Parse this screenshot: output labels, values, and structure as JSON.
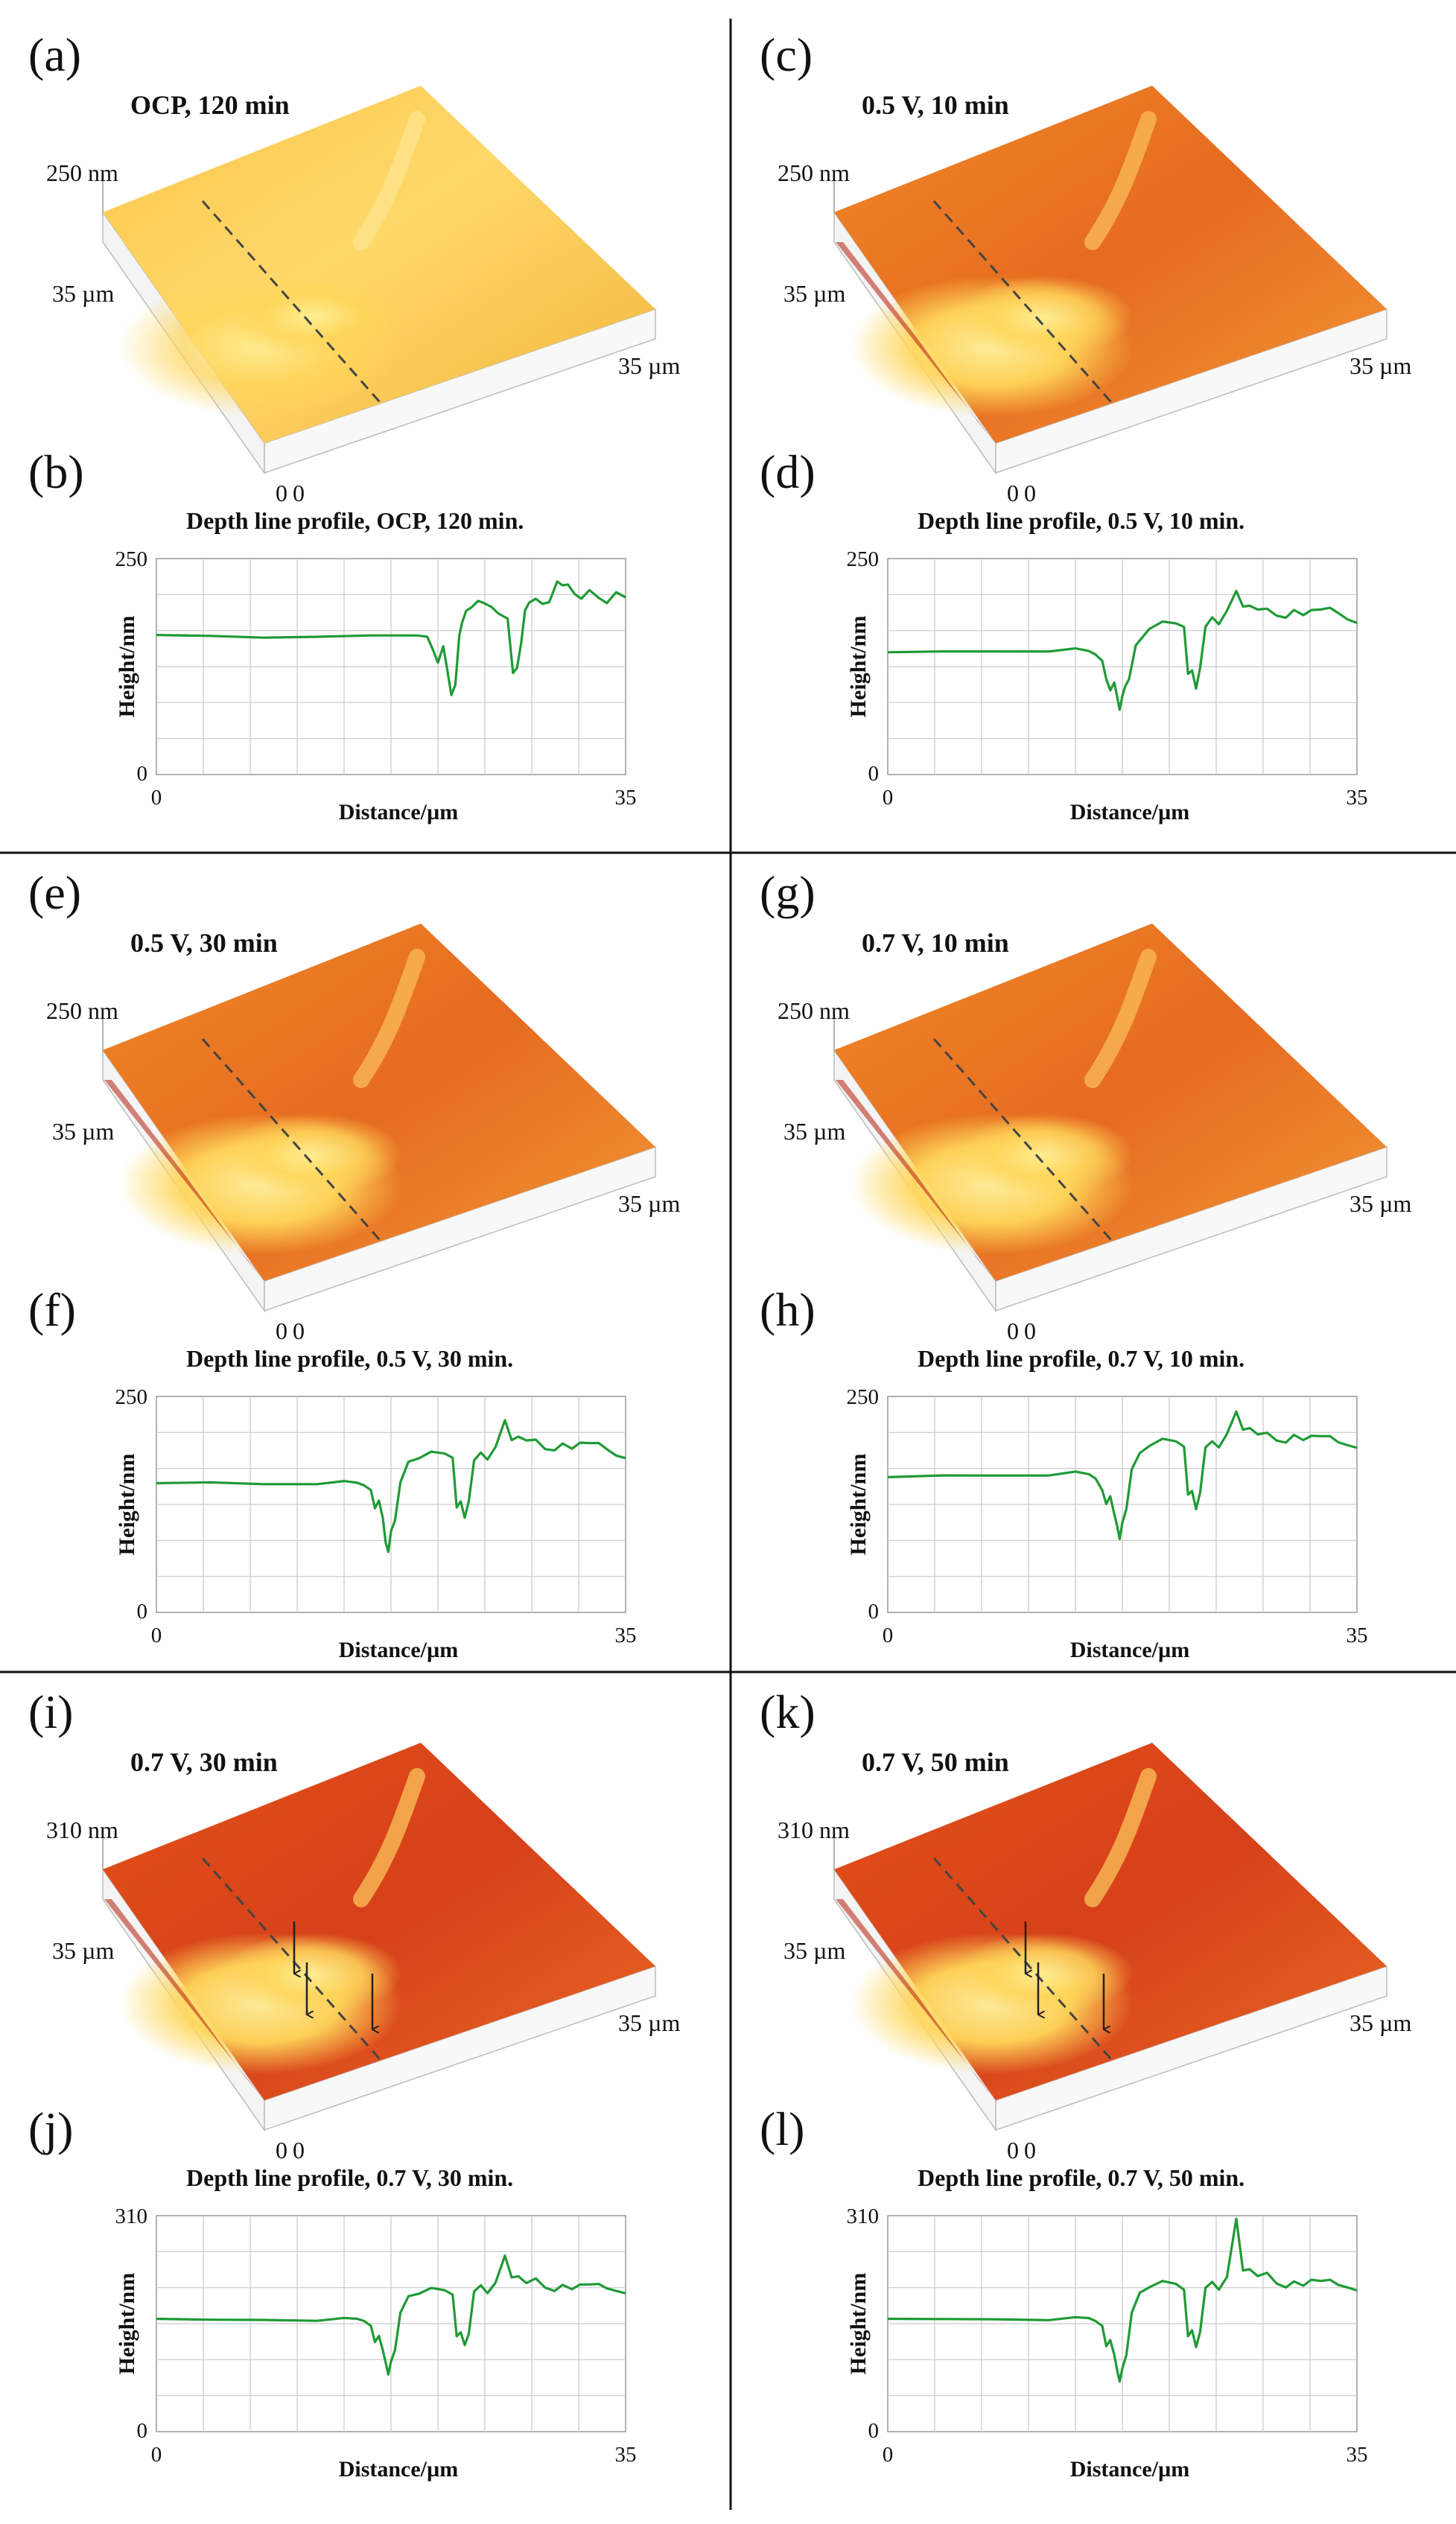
{
  "figure": {
    "colors": {
      "trace": "#1f9a36",
      "grid": "#c9c9c9",
      "divider": "#111111",
      "surface_light": "#ffe27a",
      "surface_mid": "#f5a030",
      "surface_dark": "#c9280e"
    }
  },
  "chart_data": [
    {
      "id": "a",
      "type": "surface3d",
      "letter": "(a)",
      "title": "OCP, 120 min",
      "z_top_label": "250 nm",
      "y_label": "35 µm",
      "x_label": "35 µm",
      "origin_labels": [
        "0",
        "0"
      ],
      "tone": "light",
      "arrows": 0
    },
    {
      "id": "b",
      "type": "line",
      "letter": "(b)",
      "title": "Depth line profile, OCP, 120 min.",
      "xlabel": "Distance/µm",
      "ylabel": "Height/nm",
      "xlim": [
        0,
        35
      ],
      "ylim": [
        0,
        250
      ],
      "x_ticks": [
        "0",
        "35"
      ],
      "y_ticks": [
        "0",
        "250"
      ],
      "x": [
        0,
        4,
        8,
        12,
        16,
        18,
        19.5,
        20.2,
        20.6,
        21,
        21.4,
        21.7,
        22,
        22.3,
        22.6,
        22.8,
        23.1,
        23.5,
        24,
        24.5,
        25,
        25.5,
        26.2,
        26.6,
        26.9,
        27.2,
        27.5,
        27.8,
        28.3,
        28.8,
        29.3,
        29.9,
        30.3,
        30.7,
        31.2,
        31.7,
        32.3,
        33,
        33.6,
        34.3,
        35
      ],
      "values": [
        160,
        160,
        159,
        161,
        160,
        161,
        162,
        158,
        145,
        130,
        150,
        120,
        92,
        105,
        160,
        175,
        190,
        195,
        200,
        198,
        195,
        185,
        180,
        118,
        125,
        150,
        190,
        200,
        202,
        197,
        200,
        225,
        218,
        220,
        210,
        202,
        213,
        205,
        200,
        210,
        205
      ]
    },
    {
      "id": "c",
      "type": "surface3d",
      "letter": "(c)",
      "title": "0.5 V, 10 min",
      "z_top_label": "250 nm",
      "y_label": "35 µm",
      "x_label": "35 µm",
      "origin_labels": [
        "0",
        "0"
      ],
      "tone": "mid",
      "arrows": 0
    },
    {
      "id": "d",
      "type": "line",
      "letter": "(d)",
      "title": "Depth line profile, 0.5 V, 10 min.",
      "xlabel": "Distance/µm",
      "ylabel": "Height/nm",
      "xlim": [
        0,
        35
      ],
      "ylim": [
        0,
        250
      ],
      "x_ticks": [
        "0",
        "35"
      ],
      "y_ticks": [
        "0",
        "250"
      ],
      "x": [
        0,
        4,
        8,
        12,
        14,
        15,
        15.5,
        16,
        16.3,
        16.6,
        16.9,
        17.1,
        17.3,
        17.5,
        17.7,
        18,
        18.5,
        19.5,
        20.5,
        21.5,
        22.1,
        22.4,
        22.7,
        23,
        23.3,
        23.7,
        24.2,
        24.7,
        25.3,
        26,
        26.5,
        27,
        27.6,
        28.3,
        29,
        29.7,
        30.3,
        31,
        31.6,
        32.3,
        33,
        33.6,
        34.3,
        35
      ],
      "values": [
        140,
        142,
        143,
        144,
        145,
        143,
        140,
        130,
        110,
        98,
        108,
        90,
        75,
        92,
        100,
        110,
        150,
        170,
        176,
        175,
        172,
        115,
        120,
        100,
        125,
        170,
        182,
        175,
        188,
        212,
        195,
        197,
        190,
        192,
        185,
        180,
        190,
        185,
        192,
        190,
        193,
        188,
        178,
        175
      ]
    },
    {
      "id": "e",
      "type": "surface3d",
      "letter": "(e)",
      "title": "0.5 V, 30 min",
      "z_top_label": "250 nm",
      "y_label": "35 µm",
      "x_label": "35 µm",
      "origin_labels": [
        "0",
        "0"
      ],
      "tone": "mid",
      "arrows": 0
    },
    {
      "id": "f",
      "type": "line",
      "letter": "(f)",
      "title": "Depth line profile, 0.5 V, 30 min.",
      "xlabel": "Distance/µm",
      "ylabel": "Height/nm",
      "xlim": [
        0,
        35
      ],
      "ylim": [
        0,
        250
      ],
      "x_ticks": [
        "0",
        "35"
      ],
      "y_ticks": [
        "0",
        "250"
      ],
      "x": [
        0,
        4,
        8,
        12,
        14,
        15,
        15.5,
        16,
        16.3,
        16.6,
        16.9,
        17.1,
        17.3,
        17.5,
        17.8,
        18.2,
        18.8,
        19.6,
        20.5,
        21.5,
        22.1,
        22.4,
        22.7,
        23,
        23.3,
        23.7,
        24.2,
        24.7,
        25.3,
        26,
        26.5,
        27,
        27.6,
        28.3,
        29,
        29.7,
        30.3,
        31,
        31.6,
        32.3,
        33,
        33.6,
        34.3,
        35
      ],
      "values": [
        148,
        150,
        149,
        150,
        151,
        150,
        148,
        140,
        120,
        130,
        110,
        80,
        70,
        95,
        105,
        150,
        175,
        180,
        185,
        184,
        180,
        120,
        128,
        110,
        130,
        175,
        185,
        178,
        190,
        222,
        200,
        205,
        198,
        200,
        190,
        186,
        195,
        190,
        198,
        195,
        196,
        190,
        180,
        178
      ]
    },
    {
      "id": "g",
      "type": "surface3d",
      "letter": "(g)",
      "title": "0.7 V, 10 min",
      "z_top_label": "250 nm",
      "y_label": "35 µm",
      "x_label": "35 µm",
      "origin_labels": [
        "0",
        "0"
      ],
      "tone": "mid",
      "arrows": 0
    },
    {
      "id": "h",
      "type": "line",
      "letter": "(h)",
      "title": "Depth line profile, 0.7 V, 10 min.",
      "xlabel": "Distance/µm",
      "ylabel": "Height/nm",
      "xlim": [
        0,
        35
      ],
      "ylim": [
        0,
        250
      ],
      "x_ticks": [
        "0",
        "35"
      ],
      "y_ticks": [
        "0",
        "250"
      ],
      "x": [
        0,
        4,
        8,
        12,
        14,
        15,
        15.5,
        16,
        16.3,
        16.6,
        16.9,
        17.1,
        17.3,
        17.5,
        17.8,
        18.2,
        18.8,
        19.6,
        20.5,
        21.5,
        22.1,
        22.4,
        22.7,
        23,
        23.3,
        23.7,
        24.2,
        24.7,
        25.3,
        26,
        26.5,
        27,
        27.6,
        28.3,
        29,
        29.7,
        30.3,
        31,
        31.6,
        32.3,
        33,
        33.6,
        34.3,
        35
      ],
      "values": [
        155,
        158,
        159,
        160,
        162,
        160,
        156,
        140,
        125,
        135,
        115,
        100,
        85,
        105,
        118,
        165,
        185,
        195,
        200,
        198,
        193,
        135,
        140,
        120,
        140,
        190,
        198,
        192,
        205,
        232,
        212,
        215,
        205,
        208,
        200,
        195,
        205,
        200,
        206,
        203,
        204,
        198,
        192,
        190
      ]
    },
    {
      "id": "i",
      "type": "surface3d",
      "letter": "(i)",
      "title": "0.7 V, 30 min",
      "z_top_label": "310 nm",
      "y_label": "35 µm",
      "x_label": "35 µm",
      "origin_labels": [
        "0",
        "0"
      ],
      "tone": "dark",
      "arrows": 3
    },
    {
      "id": "j",
      "type": "line",
      "letter": "(j)",
      "title": "Depth line profile, 0.7 V, 30 min.",
      "xlabel": "Distance/µm",
      "ylabel": "Height/nm",
      "xlim": [
        0,
        35
      ],
      "ylim": [
        0,
        310
      ],
      "x_ticks": [
        "0",
        "35"
      ],
      "y_ticks": [
        "0",
        "310"
      ],
      "x": [
        0,
        4,
        8,
        12,
        14,
        15,
        15.5,
        16,
        16.3,
        16.6,
        16.9,
        17.1,
        17.3,
        17.5,
        17.8,
        18.2,
        18.8,
        19.6,
        20.5,
        21.5,
        22.1,
        22.4,
        22.7,
        23,
        23.3,
        23.7,
        24.2,
        24.7,
        25.3,
        26,
        26.5,
        27,
        27.6,
        28.3,
        29,
        29.7,
        30.3,
        31,
        31.6,
        32.3,
        33,
        33.6,
        34.3,
        35
      ],
      "values": [
        160,
        160,
        161,
        161,
        162,
        162,
        160,
        150,
        128,
        138,
        118,
        98,
        82,
        102,
        115,
        170,
        195,
        200,
        205,
        203,
        198,
        135,
        142,
        125,
        142,
        200,
        210,
        200,
        212,
        252,
        222,
        225,
        212,
        220,
        208,
        200,
        210,
        205,
        213,
        210,
        212,
        207,
        200,
        198
      ]
    },
    {
      "id": "k",
      "type": "surface3d",
      "letter": "(k)",
      "title": "0.7 V, 50 min",
      "z_top_label": "310 nm",
      "y_label": "35 µm",
      "x_label": "35 µm",
      "origin_labels": [
        "0",
        "0"
      ],
      "tone": "dark",
      "arrows": 3
    },
    {
      "id": "l",
      "type": "line",
      "letter": "(l)",
      "title": "Depth line profile, 0.7 V, 50 min.",
      "xlabel": "Distance/µm",
      "ylabel": "Height/nm",
      "xlim": [
        0,
        35
      ],
      "ylim": [
        0,
        310
      ],
      "x_ticks": [
        "0",
        "35"
      ],
      "y_ticks": [
        "0",
        "310"
      ],
      "x": [
        0,
        4,
        8,
        12,
        14,
        15,
        15.5,
        16,
        16.3,
        16.6,
        16.9,
        17.1,
        17.3,
        17.5,
        17.8,
        18.2,
        18.8,
        19.6,
        20.5,
        21.5,
        22.1,
        22.4,
        22.7,
        23,
        23.3,
        23.7,
        24.2,
        24.7,
        25.3,
        26,
        26.5,
        27,
        27.6,
        28.3,
        29,
        29.7,
        30.3,
        31,
        31.6,
        32.3,
        33,
        33.6,
        34.3,
        35
      ],
      "values": [
        160,
        161,
        162,
        162,
        163,
        163,
        160,
        150,
        122,
        132,
        112,
        88,
        72,
        92,
        108,
        170,
        200,
        210,
        215,
        212,
        205,
        135,
        145,
        122,
        145,
        205,
        215,
        205,
        220,
        305,
        232,
        235,
        222,
        228,
        214,
        205,
        215,
        210,
        220,
        215,
        218,
        212,
        205,
        202
      ]
    }
  ]
}
